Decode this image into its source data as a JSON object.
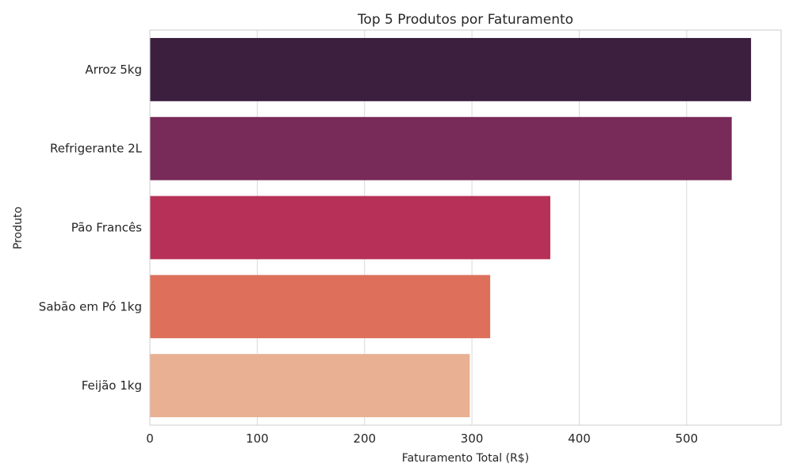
{
  "chart_data": {
    "type": "bar",
    "orientation": "horizontal",
    "title": "Top 5 Produtos por Faturamento",
    "xlabel": "Faturamento Total (R$)",
    "ylabel": "Produto",
    "categories": [
      "Arroz 5kg",
      "Refrigerante 2L",
      "Pão Francês",
      "Sabão em Pó 1kg",
      "Feijão 1kg"
    ],
    "values": [
      560,
      542,
      373,
      317,
      298
    ],
    "colors": [
      "#3c1f3f",
      "#782a59",
      "#b63057",
      "#dd6f5b",
      "#e9b093"
    ],
    "xlim": [
      0,
      588
    ],
    "xticks": [
      0,
      100,
      200,
      300,
      400,
      500
    ],
    "grid": true,
    "legend": "none"
  }
}
